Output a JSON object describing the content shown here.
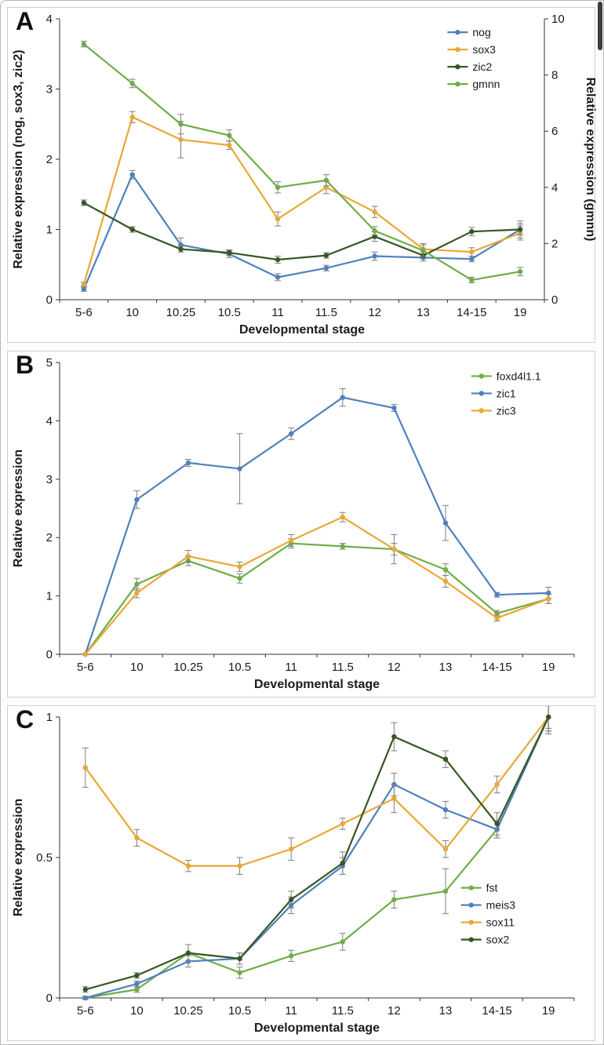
{
  "figure": {
    "xlabel": "Developmental stage",
    "stages": [
      "5-6",
      "10",
      "10.25",
      "10.5",
      "11",
      "11.5",
      "12",
      "13",
      "14-15",
      "19"
    ]
  },
  "colors": {
    "blue": "#4f81bd",
    "orange": "#e8a838",
    "dark_green": "#375623",
    "light_green": "#70ad47",
    "axis": "#333333",
    "error_bar": "#7f7f7f"
  },
  "chart_data": [
    {
      "panel_label": "A",
      "type": "line",
      "categories": [
        "5-6",
        "10",
        "10.25",
        "10.5",
        "11",
        "11.5",
        "12",
        "13",
        "14-15",
        "19"
      ],
      "xlabel": "Developmental stage",
      "ylabel_left": "Relative expression (nog, sox3, zic2)",
      "ylabel_right": "Relative expression (gmnn)",
      "ylim_left": [
        0,
        4
      ],
      "yticks_left": [
        0,
        1,
        2,
        3,
        4
      ],
      "ylim_right": [
        0,
        10
      ],
      "yticks_right": [
        0,
        2,
        4,
        6,
        8,
        10
      ],
      "grid": false,
      "legend_position": "top-right",
      "legend_xy": [
        0.8,
        0.02
      ],
      "series": [
        {
          "name": "nog",
          "color": "#4f81bd",
          "axis": "left",
          "values": [
            0.15,
            1.78,
            0.78,
            0.65,
            0.32,
            0.45,
            0.62,
            0.6,
            0.58,
            1.0
          ],
          "errors": [
            0.03,
            0.06,
            0.1,
            0.05,
            0.05,
            0.04,
            0.06,
            0.05,
            0.04,
            0.12
          ]
        },
        {
          "name": "sox3",
          "color": "#e8a838",
          "axis": "left",
          "values": [
            0.22,
            2.6,
            2.28,
            2.2,
            1.15,
            1.6,
            1.25,
            0.72,
            0.68,
            0.95
          ],
          "errors": [
            0.03,
            0.08,
            0.26,
            0.06,
            0.1,
            0.09,
            0.08,
            0.08,
            0.06,
            0.1
          ]
        },
        {
          "name": "zic2",
          "color": "#375623",
          "axis": "left",
          "values": [
            1.38,
            1.0,
            0.72,
            0.67,
            0.57,
            0.63,
            0.9,
            0.63,
            0.97,
            1.0
          ],
          "errors": [
            0.04,
            0.04,
            0.04,
            0.04,
            0.05,
            0.04,
            0.07,
            0.05,
            0.06,
            0.08
          ]
        },
        {
          "name": "gmnn",
          "color": "#70ad47",
          "axis": "right",
          "values": [
            9.1,
            7.7,
            6.25,
            5.85,
            4.0,
            4.25,
            2.45,
            1.75,
            0.7,
            1.0
          ],
          "errors": [
            0.1,
            0.15,
            0.35,
            0.2,
            0.2,
            0.2,
            0.15,
            0.2,
            0.1,
            0.15
          ]
        }
      ]
    },
    {
      "panel_label": "B",
      "type": "line",
      "categories": [
        "5-6",
        "10",
        "10.25",
        "10.5",
        "11",
        "11.5",
        "12",
        "13",
        "14-15",
        "19"
      ],
      "xlabel": "Developmental stage",
      "ylabel_left": "Relative expression",
      "ylim_left": [
        0,
        5
      ],
      "yticks_left": [
        0,
        1,
        2,
        3,
        4,
        5
      ],
      "grid": false,
      "legend_position": "top-right",
      "legend_xy": [
        0.8,
        0.02
      ],
      "series": [
        {
          "name": "foxd4l1.1",
          "color": "#70ad47",
          "axis": "left",
          "values": [
            0.0,
            1.2,
            1.6,
            1.3,
            1.9,
            1.85,
            1.8,
            1.45,
            0.7,
            0.95
          ],
          "errors": [
            0.0,
            0.1,
            0.08,
            0.08,
            0.08,
            0.05,
            0.1,
            0.1,
            0.05,
            0.08
          ]
        },
        {
          "name": "zic1",
          "color": "#4f81bd",
          "axis": "left",
          "values": [
            0.0,
            2.65,
            3.28,
            3.18,
            3.78,
            4.4,
            4.22,
            2.25,
            1.02,
            1.05
          ],
          "errors": [
            0.0,
            0.15,
            0.06,
            0.6,
            0.1,
            0.15,
            0.06,
            0.3,
            0.04,
            0.1
          ]
        },
        {
          "name": "zic3",
          "color": "#e8a838",
          "axis": "left",
          "values": [
            0.0,
            1.05,
            1.68,
            1.5,
            1.95,
            2.35,
            1.8,
            1.25,
            0.62,
            0.95
          ],
          "errors": [
            0.0,
            0.08,
            0.1,
            0.08,
            0.1,
            0.08,
            0.25,
            0.1,
            0.05,
            0.08
          ]
        }
      ]
    },
    {
      "panel_label": "C",
      "type": "line",
      "categories": [
        "5-6",
        "10",
        "10.25",
        "10.5",
        "11",
        "11.5",
        "12",
        "13",
        "14-15",
        "19"
      ],
      "xlabel": "Developmental stage",
      "ylabel_left": "Relative expression",
      "ylim_left": [
        0,
        1
      ],
      "yticks_left": [
        0,
        0.5,
        1
      ],
      "grid": false,
      "legend_position": "bottom-right",
      "legend_xy": [
        0.78,
        0.58
      ],
      "series": [
        {
          "name": "fst",
          "color": "#70ad47",
          "axis": "left",
          "values": [
            0.0,
            0.03,
            0.16,
            0.09,
            0.15,
            0.2,
            0.35,
            0.38,
            0.6,
            1.0
          ],
          "errors": [
            0.005,
            0.01,
            0.03,
            0.02,
            0.02,
            0.03,
            0.03,
            0.08,
            0.03,
            0.04
          ]
        },
        {
          "name": "meis3",
          "color": "#4f81bd",
          "axis": "left",
          "values": [
            0.0,
            0.05,
            0.13,
            0.14,
            0.33,
            0.47,
            0.76,
            0.67,
            0.6,
            1.0
          ],
          "errors": [
            0.005,
            0.01,
            0.02,
            0.02,
            0.03,
            0.03,
            0.04,
            0.03,
            0.03,
            0.05
          ]
        },
        {
          "name": "sox11",
          "color": "#e8a838",
          "axis": "left",
          "values": [
            0.82,
            0.57,
            0.47,
            0.47,
            0.53,
            0.62,
            0.71,
            0.53,
            0.76,
            1.0
          ],
          "errors": [
            0.07,
            0.03,
            0.02,
            0.03,
            0.04,
            0.02,
            0.05,
            0.03,
            0.03,
            0.05
          ]
        },
        {
          "name": "sox2",
          "color": "#375623",
          "axis": "left",
          "values": [
            0.03,
            0.08,
            0.16,
            0.14,
            0.35,
            0.48,
            0.93,
            0.85,
            0.62,
            1.0
          ],
          "errors": [
            0.01,
            0.01,
            0.03,
            0.02,
            0.03,
            0.04,
            0.05,
            0.03,
            0.04,
            0.06
          ]
        }
      ]
    }
  ]
}
